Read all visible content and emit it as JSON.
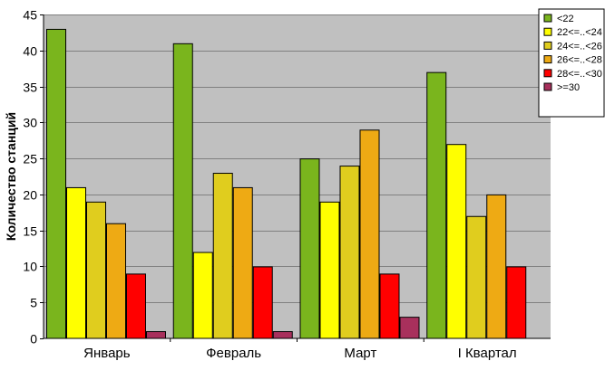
{
  "chart_data": {
    "type": "bar",
    "categories": [
      "Январь",
      "Февраль",
      "Март",
      "I Квартал"
    ],
    "series": [
      {
        "name": "<22",
        "color": "#7ab51d",
        "values": [
          43,
          41,
          25,
          37
        ]
      },
      {
        "name": "22<=..<24",
        "color": "#ffff00",
        "values": [
          21,
          12,
          19,
          27
        ]
      },
      {
        "name": "24<=..<26",
        "color": "#e0cd1e",
        "values": [
          19,
          23,
          24,
          17
        ]
      },
      {
        "name": "26<=..<28",
        "color": "#eeaa14",
        "values": [
          16,
          21,
          29,
          20
        ]
      },
      {
        "name": "28<=..<30",
        "color": "#ff0000",
        "values": [
          9,
          10,
          9,
          10
        ]
      },
      {
        "name": ">=30",
        "color": "#a8305c",
        "values": [
          1,
          1,
          3,
          0
        ]
      }
    ],
    "ylabel": "Количество станций",
    "xlabel": "",
    "ylim": [
      0,
      45
    ],
    "yticks": [
      0,
      5,
      10,
      15,
      20,
      25,
      30,
      35,
      40,
      45
    ],
    "grid": true,
    "legend_position": "top-right",
    "colors": {
      "plot_background": "#c0c0c0",
      "gridline": "#808080"
    }
  }
}
